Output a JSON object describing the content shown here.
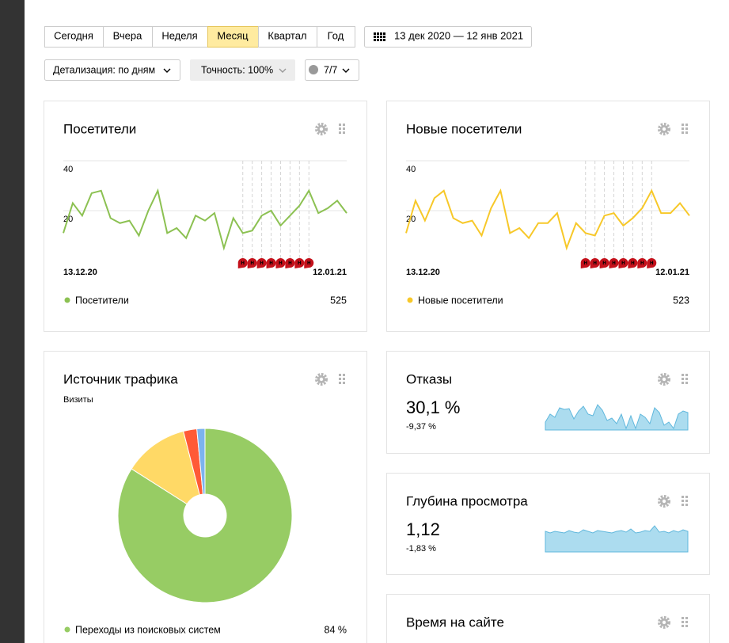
{
  "toolbar": {
    "periods": [
      "Сегодня",
      "Вчера",
      "Неделя",
      "Месяц",
      "Квартал",
      "Год"
    ],
    "active_index": 3,
    "date_range": "13 дек 2020 — 12 янв 2021"
  },
  "filters": {
    "detail": "Детализация: по дням",
    "accuracy": "Точность: 100%",
    "annotations": "7/7"
  },
  "widgets": [
    {
      "type": "line",
      "title": "Посетители",
      "ylim": [
        0,
        40
      ],
      "yticks": [
        20,
        40
      ],
      "x_start": "13.12.20",
      "x_end": "12.01.21",
      "series": {
        "name": "Посетители",
        "color": "#8cc152",
        "values": [
          11,
          23,
          18,
          27,
          28,
          17,
          15,
          16,
          10,
          20,
          28,
          11,
          13,
          9,
          18,
          16,
          19,
          5,
          17,
          11,
          12,
          18,
          20,
          14,
          18,
          22,
          28,
          19,
          21,
          24,
          19
        ]
      },
      "total": 525,
      "holidays": [
        {
          "index": 19,
          "label": "н"
        },
        {
          "index": 20,
          "label": "н"
        },
        {
          "index": 21,
          "label": "н"
        },
        {
          "index": 22,
          "label": "н"
        },
        {
          "index": 23,
          "label": "н"
        },
        {
          "index": 24,
          "label": "н"
        },
        {
          "index": 25,
          "label": "н"
        },
        {
          "index": 26,
          "label": "н"
        }
      ]
    },
    {
      "type": "line",
      "title": "Новые посетители",
      "ylim": [
        0,
        40
      ],
      "yticks": [
        20,
        40
      ],
      "x_start": "13.12.20",
      "x_end": "12.01.21",
      "series": {
        "name": "Новые посетители",
        "color": "#f7c829",
        "values": [
          11,
          24,
          16,
          25,
          28,
          17,
          15,
          16,
          10,
          21,
          28,
          11,
          13,
          9,
          15,
          15,
          19,
          5,
          15,
          11,
          10,
          18,
          19,
          14,
          17,
          21,
          28,
          19,
          19,
          23,
          18
        ]
      },
      "total": 523,
      "holidays": [
        {
          "index": 19,
          "label": "н"
        },
        {
          "index": 20,
          "label": "н"
        },
        {
          "index": 21,
          "label": "н"
        },
        {
          "index": 22,
          "label": "н"
        },
        {
          "index": 23,
          "label": "н"
        },
        {
          "index": 24,
          "label": "н"
        },
        {
          "index": 25,
          "label": "н"
        },
        {
          "index": 26,
          "label": "н"
        }
      ]
    },
    {
      "type": "pie",
      "title": "Источник трафика",
      "subtitle": "Визиты",
      "slices": [
        {
          "name": "Переходы из поисковых систем",
          "value": 84,
          "value_label": "84 %",
          "color": "#97cc64"
        },
        {
          "value": 12,
          "color": "#ffd966"
        },
        {
          "value": 2.5,
          "color": "#ff5a36"
        },
        {
          "value": 1.5,
          "color": "#7cb3ef"
        }
      ]
    },
    {
      "type": "metric",
      "title": "Отказы",
      "value": "30,1 %",
      "change": "-9,37 %",
      "change_color": "#2a9d2a",
      "ylim": [
        0,
        35
      ],
      "values": [
        10,
        20,
        16,
        28,
        26,
        27,
        14,
        24,
        30,
        20,
        18,
        32,
        25,
        12,
        15,
        8,
        20,
        2,
        18,
        2,
        20,
        16,
        8,
        28,
        22,
        6,
        10,
        2,
        20,
        24,
        22
      ]
    },
    {
      "type": "metric",
      "title": "Глубина просмотра",
      "value": "1,12",
      "change": "-1,83 %",
      "change_color": "#d8232a",
      "ylim": [
        0,
        35
      ],
      "values": [
        26,
        24,
        26,
        25,
        24,
        27,
        25,
        24,
        28,
        26,
        24,
        27,
        26,
        25,
        24,
        26,
        27,
        25,
        29,
        24,
        25,
        27,
        26,
        33,
        25,
        26,
        24,
        27,
        25,
        28,
        26
      ]
    },
    {
      "type": "title",
      "title": "Время на сайте"
    }
  ]
}
